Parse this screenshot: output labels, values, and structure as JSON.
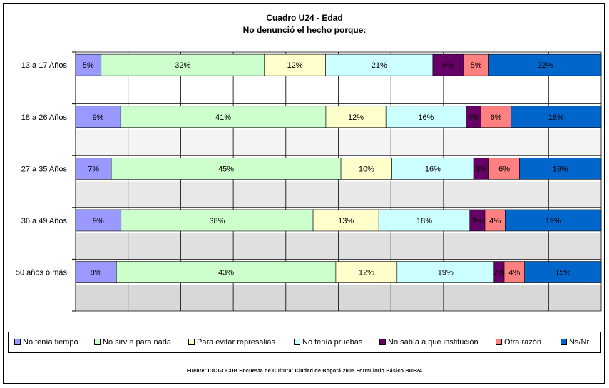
{
  "chart_data": {
    "type": "bar",
    "orientation": "horizontal",
    "stacked": "percent",
    "title": "Cuadro U24 - Edad",
    "subtitle": "No denunció el hecho porque:",
    "categories": [
      "13 a 17 Años",
      "18 a 26 Años",
      "27 a 35 Años",
      "36 a 49 Años",
      "50 años o más"
    ],
    "series": [
      {
        "name": "No tenía tiempo",
        "color": "#9999ff",
        "values": [
          5,
          9,
          7,
          9,
          8
        ],
        "labels": [
          "5%",
          "9%",
          "7%",
          "9%",
          "8%"
        ]
      },
      {
        "name": "No sirv e para nada",
        "color": "#ccffcc",
        "values": [
          32,
          41,
          45,
          38,
          43
        ],
        "labels": [
          "32%",
          "41%",
          "45%",
          "38%",
          "43%"
        ]
      },
      {
        "name": "Para evitar represalias",
        "color": "#ffffcc",
        "values": [
          12,
          12,
          10,
          13,
          12
        ],
        "labels": [
          "12%",
          "12%",
          "10%",
          "13%",
          "12%"
        ]
      },
      {
        "name": "No tenía pruebas",
        "color": "#ccffff",
        "values": [
          21,
          16,
          16,
          18,
          19
        ],
        "labels": [
          "21%",
          "16%",
          "16%",
          "18%",
          "19%"
        ]
      },
      {
        "name": "No sabía a que institución",
        "color": "#660066",
        "values": [
          6,
          3,
          3,
          3,
          2
        ],
        "labels": [
          "6%",
          "3%",
          "3%",
          "3%",
          "2%"
        ]
      },
      {
        "name": "Otra razón",
        "color": "#ff8080",
        "values": [
          5,
          6,
          6,
          4,
          4
        ],
        "labels": [
          "5%",
          "6%",
          "6%",
          "4%",
          "4%"
        ]
      },
      {
        "name": "Ns/Nr",
        "color": "#0066cc",
        "values": [
          22,
          18,
          16,
          19,
          15
        ],
        "labels": [
          "22%",
          "18%",
          "16%",
          "19%",
          "15%"
        ]
      }
    ],
    "xlim": [
      0,
      100
    ],
    "grid": true,
    "legend": "bottom"
  },
  "source": "Fuente: IDCT-OCUB Encuesta de Cultura: Ciudad de Bogotá 2005 Formulario Básico BUF24"
}
